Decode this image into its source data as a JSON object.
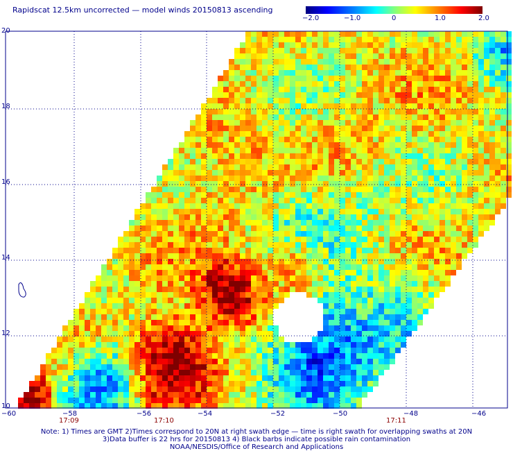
{
  "title": "Rapidscat 12.5km uncorrected — model winds 20150813 ascending",
  "colorbar": {
    "ticks": [
      "−2.0",
      "−1.0",
      "0",
      "1.0",
      "2.0"
    ],
    "colors": [
      "#00007f",
      "#0000ff",
      "#00ffff",
      "#ffff00",
      "#ff0000",
      "#7f0000"
    ]
  },
  "axes": {
    "y_ticks": [
      "20",
      "18",
      "16",
      "14",
      "12",
      "10"
    ],
    "x_ticks": [
      "−60",
      "−58",
      "−56",
      "−54",
      "−52",
      "−50",
      "−48",
      "−46"
    ]
  },
  "times": [
    "17:09",
    "17:10",
    "17:11"
  ],
  "notes": {
    "line1": "Note: 1) Times are GMT 2)Times correspond to 20N at right swath edge — time is right swath for overlapping swaths at 20N",
    "line2": "3)Data buffer is 22 hrs for 20150813 4) Black barbs indicate possible rain contamination",
    "line3": "NOAA/NESDIS/Office of Research and Applications"
  },
  "map_colors": {
    "grid": "#00008b",
    "coast": "#00008b"
  }
}
